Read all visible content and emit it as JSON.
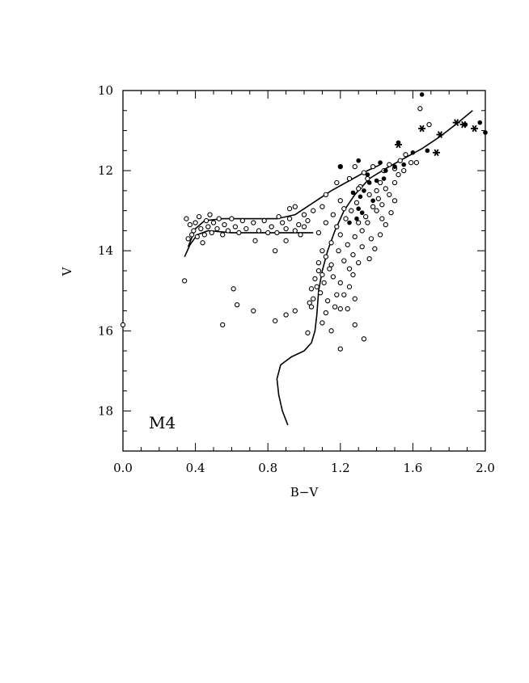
{
  "chart_data": {
    "type": "scatter",
    "title": "",
    "annotation": "M4",
    "xlabel": "B−V",
    "ylabel": "V",
    "xlim": [
      0.0,
      2.0
    ],
    "ylim": [
      19.0,
      10.0
    ],
    "y_inverted": true,
    "xticks": [
      0.0,
      0.4,
      0.8,
      1.2,
      1.6,
      2.0
    ],
    "xtick_labels": [
      "0.0",
      "0.4",
      "0.8",
      "1.2",
      "1.6",
      "2.0"
    ],
    "yticks": [
      10,
      12,
      14,
      16,
      18
    ],
    "ytick_labels": [
      "10",
      "12",
      "14",
      "16",
      "18"
    ],
    "grid": false,
    "series": [
      {
        "marker": "open-circle",
        "points": [
          [
            0.35,
            13.2
          ],
          [
            0.37,
            13.35
          ],
          [
            0.39,
            13.5
          ],
          [
            0.4,
            13.3
          ],
          [
            0.42,
            13.15
          ],
          [
            0.43,
            13.45
          ],
          [
            0.45,
            13.6
          ],
          [
            0.46,
            13.25
          ],
          [
            0.47,
            13.4
          ],
          [
            0.48,
            13.1
          ],
          [
            0.49,
            13.55
          ],
          [
            0.5,
            13.3
          ],
          [
            0.52,
            13.45
          ],
          [
            0.53,
            13.2
          ],
          [
            0.55,
            13.6
          ],
          [
            0.56,
            13.35
          ],
          [
            0.58,
            13.5
          ],
          [
            0.6,
            13.2
          ],
          [
            0.62,
            13.4
          ],
          [
            0.64,
            13.55
          ],
          [
            0.66,
            13.25
          ],
          [
            0.68,
            13.45
          ],
          [
            0.36,
            13.7
          ],
          [
            0.38,
            13.6
          ],
          [
            0.44,
            13.8
          ],
          [
            0.41,
            13.65
          ],
          [
            0.72,
            13.3
          ],
          [
            0.75,
            13.5
          ],
          [
            0.78,
            13.25
          ],
          [
            0.82,
            13.4
          ],
          [
            0.85,
            13.55
          ],
          [
            0.88,
            13.3
          ],
          [
            0.9,
            13.45
          ],
          [
            0.92,
            13.2
          ],
          [
            0.95,
            13.5
          ],
          [
            0.97,
            13.35
          ],
          [
            1.0,
            13.4
          ],
          [
            1.02,
            13.25
          ],
          [
            0.86,
            13.15
          ],
          [
            0.8,
            13.55
          ],
          [
            0.73,
            13.75
          ],
          [
            0.84,
            14.0
          ],
          [
            0.92,
            12.95
          ],
          [
            0.98,
            13.6
          ],
          [
            0.9,
            13.75
          ],
          [
            0.34,
            14.75
          ],
          [
            0.61,
            14.95
          ],
          [
            0.63,
            15.35
          ],
          [
            0.72,
            15.5
          ],
          [
            0.55,
            15.85
          ],
          [
            0.0,
            15.85
          ],
          [
            0.84,
            15.75
          ],
          [
            0.9,
            15.6
          ],
          [
            0.95,
            15.5
          ],
          [
            1.04,
            15.4
          ],
          [
            1.1,
            15.8
          ],
          [
            1.15,
            16.0
          ],
          [
            1.2,
            15.45
          ],
          [
            1.24,
            15.45
          ],
          [
            1.28,
            15.85
          ],
          [
            1.33,
            16.2
          ],
          [
            1.2,
            16.45
          ],
          [
            1.02,
            16.05
          ],
          [
            1.05,
            15.2
          ],
          [
            1.07,
            14.9
          ],
          [
            1.1,
            14.6
          ],
          [
            1.08,
            14.3
          ],
          [
            1.12,
            14.15
          ],
          [
            1.06,
            14.7
          ],
          [
            1.14,
            14.45
          ],
          [
            1.09,
            15.05
          ],
          [
            1.03,
            15.3
          ],
          [
            1.11,
            14.8
          ],
          [
            1.13,
            15.25
          ],
          [
            1.15,
            14.35
          ],
          [
            1.1,
            14.0
          ],
          [
            1.16,
            14.65
          ],
          [
            1.08,
            14.5
          ],
          [
            1.18,
            15.1
          ],
          [
            1.04,
            14.95
          ],
          [
            1.2,
            14.8
          ],
          [
            1.17,
            15.4
          ],
          [
            1.12,
            15.55
          ],
          [
            1.22,
            14.25
          ],
          [
            1.19,
            14.0
          ],
          [
            1.25,
            14.45
          ],
          [
            1.15,
            13.8
          ],
          [
            1.2,
            13.6
          ],
          [
            1.24,
            13.85
          ],
          [
            1.18,
            13.4
          ],
          [
            1.27,
            14.1
          ],
          [
            1.23,
            13.2
          ],
          [
            1.28,
            13.65
          ],
          [
            1.3,
            13.3
          ],
          [
            1.26,
            13.0
          ],
          [
            1.32,
            13.5
          ],
          [
            1.29,
            12.8
          ],
          [
            1.34,
            13.15
          ],
          [
            1.22,
            12.95
          ],
          [
            1.36,
            12.6
          ],
          [
            1.31,
            12.4
          ],
          [
            1.38,
            12.9
          ],
          [
            1.35,
            12.2
          ],
          [
            1.4,
            12.5
          ],
          [
            1.33,
            12.05
          ],
          [
            1.42,
            12.3
          ],
          [
            1.38,
            11.9
          ],
          [
            1.44,
            12.0
          ],
          [
            1.47,
            11.85
          ],
          [
            1.5,
            11.95
          ],
          [
            1.53,
            11.75
          ],
          [
            1.56,
            11.6
          ],
          [
            1.59,
            11.8
          ],
          [
            1.41,
            12.7
          ],
          [
            1.45,
            12.45
          ],
          [
            1.25,
            12.2
          ],
          [
            1.28,
            11.9
          ],
          [
            1.3,
            12.45
          ],
          [
            1.2,
            12.75
          ],
          [
            1.16,
            13.1
          ],
          [
            1.12,
            13.3
          ],
          [
            1.08,
            13.55
          ],
          [
            1.1,
            12.9
          ],
          [
            1.35,
            13.3
          ],
          [
            1.4,
            13.0
          ],
          [
            1.43,
            13.2
          ],
          [
            1.37,
            13.7
          ],
          [
            1.32,
            13.9
          ],
          [
            1.3,
            14.3
          ],
          [
            1.27,
            14.6
          ],
          [
            1.25,
            14.9
          ],
          [
            1.22,
            15.1
          ],
          [
            1.28,
            15.2
          ],
          [
            0.95,
            12.9
          ],
          [
            1.05,
            13.0
          ],
          [
            1.12,
            12.6
          ],
          [
            1.18,
            12.3
          ],
          [
            1.2,
            11.9
          ],
          [
            1.43,
            12.85
          ],
          [
            1.47,
            12.6
          ],
          [
            1.5,
            12.3
          ],
          [
            1.52,
            12.1
          ],
          [
            1.55,
            12.0
          ],
          [
            1.62,
            11.8
          ],
          [
            1.64,
            10.45
          ],
          [
            1.69,
            10.85
          ],
          [
            1.5,
            12.75
          ],
          [
            1.48,
            13.05
          ],
          [
            1.45,
            13.35
          ],
          [
            1.42,
            13.6
          ],
          [
            1.39,
            13.95
          ],
          [
            1.36,
            14.2
          ],
          [
            1.0,
            13.1
          ]
        ]
      },
      {
        "marker": "filled-circle",
        "points": [
          [
            1.65,
            10.1
          ],
          [
            1.68,
            11.5
          ],
          [
            1.89,
            10.85
          ],
          [
            1.97,
            10.8
          ],
          [
            2.0,
            11.05
          ],
          [
            1.52,
            11.3
          ],
          [
            1.6,
            11.55
          ],
          [
            1.3,
            11.75
          ],
          [
            1.42,
            11.8
          ],
          [
            1.5,
            11.9
          ],
          [
            1.35,
            12.1
          ],
          [
            1.4,
            12.25
          ],
          [
            1.33,
            12.5
          ],
          [
            1.38,
            12.75
          ],
          [
            1.3,
            12.95
          ],
          [
            1.29,
            13.2
          ],
          [
            1.31,
            12.65
          ],
          [
            1.36,
            12.3
          ],
          [
            1.45,
            12.0
          ],
          [
            1.55,
            11.85
          ],
          [
            1.2,
            11.9
          ],
          [
            1.27,
            12.55
          ],
          [
            1.32,
            13.05
          ],
          [
            1.25,
            13.3
          ],
          [
            1.44,
            12.2
          ]
        ]
      },
      {
        "marker": "asterisk",
        "points": [
          [
            1.52,
            11.35
          ],
          [
            1.65,
            10.95
          ],
          [
            1.73,
            11.55
          ],
          [
            1.75,
            11.1
          ],
          [
            1.84,
            10.8
          ],
          [
            1.88,
            10.85
          ],
          [
            1.94,
            10.95
          ]
        ]
      }
    ],
    "curves": [
      {
        "name": "",
        "points": [
          [
            0.91,
            18.35
          ],
          [
            0.88,
            18.0
          ],
          [
            0.86,
            17.6
          ],
          [
            0.85,
            17.2
          ],
          [
            0.87,
            16.85
          ],
          [
            0.93,
            16.65
          ],
          [
            1.0,
            16.5
          ],
          [
            1.04,
            16.3
          ],
          [
            1.06,
            16.0
          ],
          [
            1.07,
            15.6
          ],
          [
            1.08,
            15.0
          ],
          [
            1.1,
            14.5
          ],
          [
            1.13,
            14.0
          ],
          [
            1.17,
            13.5
          ],
          [
            1.22,
            13.0
          ],
          [
            1.28,
            12.6
          ],
          [
            1.36,
            12.2
          ],
          [
            1.45,
            11.95
          ],
          [
            1.55,
            11.7
          ],
          [
            1.65,
            11.45
          ],
          [
            1.75,
            11.15
          ],
          [
            1.85,
            10.8
          ],
          [
            1.93,
            10.5
          ]
        ]
      },
      {
        "name": "",
        "points": [
          [
            0.34,
            14.15
          ],
          [
            0.37,
            13.85
          ],
          [
            0.41,
            13.6
          ],
          [
            0.47,
            13.5
          ],
          [
            0.6,
            13.55
          ],
          [
            0.75,
            13.55
          ],
          [
            0.9,
            13.55
          ],
          [
            1.0,
            13.55
          ],
          [
            1.05,
            13.55
          ]
        ]
      },
      {
        "name": "",
        "points": [
          [
            0.36,
            13.9
          ],
          [
            0.4,
            13.45
          ],
          [
            0.45,
            13.25
          ],
          [
            0.55,
            13.2
          ],
          [
            0.7,
            13.2
          ],
          [
            0.85,
            13.2
          ],
          [
            0.95,
            13.1
          ],
          [
            1.05,
            12.8
          ],
          [
            1.15,
            12.5
          ],
          [
            1.25,
            12.25
          ],
          [
            1.35,
            12.0
          ],
          [
            1.42,
            11.85
          ]
        ]
      }
    ]
  }
}
